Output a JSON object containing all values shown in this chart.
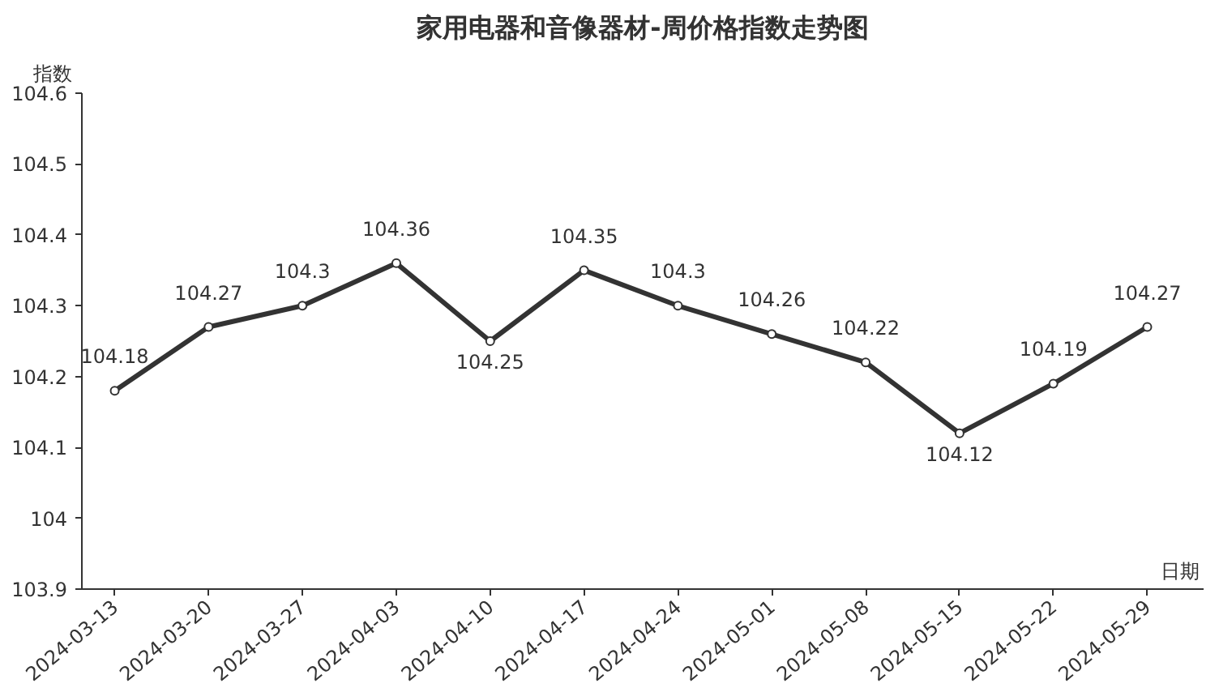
{
  "chart_data": {
    "type": "line",
    "title": "家用电器和音像器材-周价格指数走势图",
    "xlabel": "日期",
    "ylabel": "指数",
    "categories": [
      "2024-03-13",
      "2024-03-20",
      "2024-03-27",
      "2024-04-03",
      "2024-04-10",
      "2024-04-17",
      "2024-04-24",
      "2024-05-01",
      "2024-05-08",
      "2024-05-15",
      "2024-05-22",
      "2024-05-29"
    ],
    "series": [
      {
        "color": "#333333",
        "values": [
          104.18,
          104.27,
          104.3,
          104.36,
          104.25,
          104.35,
          104.3,
          104.26,
          104.22,
          104.12,
          104.19,
          104.27
        ]
      }
    ],
    "ylim": [
      103.9,
      104.6
    ],
    "yticks": [
      103.9,
      104,
      104.1,
      104.2,
      104.3,
      104.4,
      104.5,
      104.6
    ],
    "data_labels": true,
    "marker": "circle",
    "line_style": "solid",
    "grid": false
  }
}
